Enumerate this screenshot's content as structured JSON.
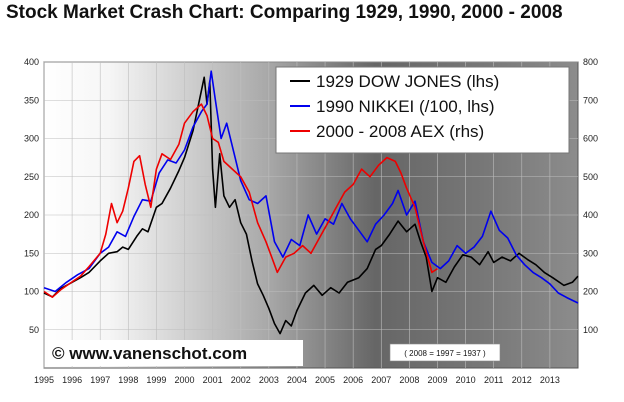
{
  "title": "Stock Market Crash Chart: Comparing 1929, 1990, 2000 - 2008",
  "watermark": "© www.vanenschot.com",
  "note": "( 2008 = 1997 = 1937 )",
  "chart_data": {
    "type": "line",
    "title": "Stock Market Crash Chart: Comparing 1929, 1990, 2000 - 2008",
    "x_ticks": [
      1995,
      1996,
      1997,
      1998,
      1999,
      2000,
      2001,
      2002,
      2003,
      2004,
      2005,
      2006,
      2007,
      2008,
      2009,
      2010,
      2011,
      2012,
      2013
    ],
    "xlim": [
      1995,
      2014
    ],
    "ylim_left": [
      0,
      400
    ],
    "ylim_right": [
      0,
      800
    ],
    "y_ticks_left": [
      50,
      100,
      150,
      200,
      250,
      300,
      350,
      400
    ],
    "y_ticks_right": [
      100,
      200,
      300,
      400,
      500,
      600,
      700,
      800
    ],
    "grid": true,
    "legend_position": "top-right",
    "series": [
      {
        "name": "1929 DOW JONES (lhs)",
        "color": "#000000",
        "axis": "left",
        "points": [
          [
            1995.0,
            98
          ],
          [
            1995.3,
            93
          ],
          [
            1995.6,
            104
          ],
          [
            1996.0,
            112
          ],
          [
            1996.3,
            118
          ],
          [
            1996.6,
            125
          ],
          [
            1997.0,
            140
          ],
          [
            1997.3,
            150
          ],
          [
            1997.6,
            152
          ],
          [
            1997.8,
            158
          ],
          [
            1998.0,
            155
          ],
          [
            1998.3,
            172
          ],
          [
            1998.5,
            182
          ],
          [
            1998.7,
            178
          ],
          [
            1999.0,
            210
          ],
          [
            1999.2,
            215
          ],
          [
            1999.5,
            235
          ],
          [
            1999.8,
            258
          ],
          [
            2000.0,
            275
          ],
          [
            2000.3,
            310
          ],
          [
            2000.5,
            345
          ],
          [
            2000.7,
            380
          ],
          [
            2000.8,
            345
          ],
          [
            2000.9,
            375
          ],
          [
            2001.0,
            260
          ],
          [
            2001.1,
            210
          ],
          [
            2001.25,
            280
          ],
          [
            2001.4,
            225
          ],
          [
            2001.6,
            210
          ],
          [
            2001.8,
            220
          ],
          [
            2002.0,
            190
          ],
          [
            2002.2,
            175
          ],
          [
            2002.4,
            140
          ],
          [
            2002.6,
            110
          ],
          [
            2002.8,
            95
          ],
          [
            2003.0,
            78
          ],
          [
            2003.2,
            58
          ],
          [
            2003.4,
            45
          ],
          [
            2003.6,
            62
          ],
          [
            2003.8,
            55
          ],
          [
            2004.0,
            75
          ],
          [
            2004.3,
            98
          ],
          [
            2004.6,
            108
          ],
          [
            2004.9,
            95
          ],
          [
            2005.2,
            105
          ],
          [
            2005.5,
            98
          ],
          [
            2005.8,
            112
          ],
          [
            2006.2,
            118
          ],
          [
            2006.5,
            130
          ],
          [
            2006.8,
            155
          ],
          [
            2007.0,
            160
          ],
          [
            2007.3,
            175
          ],
          [
            2007.6,
            192
          ],
          [
            2007.9,
            178
          ],
          [
            2008.2,
            188
          ],
          [
            2008.4,
            165
          ],
          [
            2008.6,
            145
          ],
          [
            2008.8,
            100
          ],
          [
            2009.0,
            118
          ],
          [
            2009.3,
            112
          ],
          [
            2009.6,
            132
          ],
          [
            2009.9,
            148
          ],
          [
            2010.2,
            145
          ],
          [
            2010.5,
            135
          ],
          [
            2010.8,
            152
          ],
          [
            2011.0,
            138
          ],
          [
            2011.3,
            145
          ],
          [
            2011.6,
            140
          ],
          [
            2011.9,
            150
          ],
          [
            2012.2,
            142
          ],
          [
            2012.5,
            135
          ],
          [
            2012.8,
            125
          ],
          [
            2013.1,
            118
          ],
          [
            2013.5,
            108
          ],
          [
            2013.8,
            112
          ],
          [
            2014.0,
            120
          ]
        ]
      },
      {
        "name": "1990 NIKKEI (/100, lhs)",
        "color": "#0000ee",
        "axis": "left",
        "points": [
          [
            1995.0,
            105
          ],
          [
            1995.4,
            100
          ],
          [
            1995.8,
            112
          ],
          [
            1996.2,
            122
          ],
          [
            1996.6,
            130
          ],
          [
            1997.0,
            150
          ],
          [
            1997.3,
            158
          ],
          [
            1997.6,
            178
          ],
          [
            1997.9,
            172
          ],
          [
            1998.2,
            198
          ],
          [
            1998.5,
            220
          ],
          [
            1998.8,
            218
          ],
          [
            1999.1,
            255
          ],
          [
            1999.4,
            272
          ],
          [
            1999.7,
            268
          ],
          [
            2000.0,
            285
          ],
          [
            2000.3,
            315
          ],
          [
            2000.6,
            335
          ],
          [
            2000.8,
            345
          ],
          [
            2000.95,
            388
          ],
          [
            2001.1,
            350
          ],
          [
            2001.3,
            300
          ],
          [
            2001.5,
            320
          ],
          [
            2001.8,
            275
          ],
          [
            2002.0,
            245
          ],
          [
            2002.3,
            220
          ],
          [
            2002.6,
            215
          ],
          [
            2002.9,
            225
          ],
          [
            2003.2,
            165
          ],
          [
            2003.5,
            145
          ],
          [
            2003.8,
            168
          ],
          [
            2004.1,
            160
          ],
          [
            2004.4,
            200
          ],
          [
            2004.7,
            175
          ],
          [
            2005.0,
            195
          ],
          [
            2005.3,
            188
          ],
          [
            2005.6,
            215
          ],
          [
            2005.9,
            195
          ],
          [
            2006.2,
            180
          ],
          [
            2006.5,
            165
          ],
          [
            2006.8,
            188
          ],
          [
            2007.1,
            200
          ],
          [
            2007.4,
            215
          ],
          [
            2007.6,
            232
          ],
          [
            2007.9,
            200
          ],
          [
            2008.2,
            218
          ],
          [
            2008.5,
            165
          ],
          [
            2008.8,
            138
          ],
          [
            2009.1,
            130
          ],
          [
            2009.4,
            140
          ],
          [
            2009.7,
            160
          ],
          [
            2010.0,
            150
          ],
          [
            2010.3,
            158
          ],
          [
            2010.6,
            172
          ],
          [
            2010.9,
            205
          ],
          [
            2011.2,
            180
          ],
          [
            2011.5,
            170
          ],
          [
            2011.8,
            148
          ],
          [
            2012.1,
            135
          ],
          [
            2012.4,
            125
          ],
          [
            2012.7,
            118
          ],
          [
            2013.0,
            110
          ],
          [
            2013.3,
            98
          ],
          [
            2013.6,
            92
          ],
          [
            2014.0,
            85
          ]
        ]
      },
      {
        "name": "2000 - 2008 AEX (rhs)",
        "color": "#ee0000",
        "axis": "right",
        "points": [
          [
            1995.0,
            200
          ],
          [
            1995.3,
            185
          ],
          [
            1995.6,
            205
          ],
          [
            1996.0,
            225
          ],
          [
            1996.3,
            240
          ],
          [
            1996.6,
            265
          ],
          [
            1997.0,
            300
          ],
          [
            1997.2,
            350
          ],
          [
            1997.4,
            430
          ],
          [
            1997.6,
            380
          ],
          [
            1997.8,
            410
          ],
          [
            1998.0,
            470
          ],
          [
            1998.2,
            540
          ],
          [
            1998.4,
            555
          ],
          [
            1998.6,
            480
          ],
          [
            1998.8,
            420
          ],
          [
            1999.0,
            520
          ],
          [
            1999.2,
            560
          ],
          [
            1999.5,
            545
          ],
          [
            1999.8,
            585
          ],
          [
            2000.0,
            640
          ],
          [
            2000.3,
            670
          ],
          [
            2000.6,
            690
          ],
          [
            2000.8,
            660
          ],
          [
            2001.0,
            600
          ],
          [
            2001.2,
            590
          ],
          [
            2001.4,
            540
          ],
          [
            2001.7,
            520
          ],
          [
            2002.0,
            500
          ],
          [
            2002.3,
            460
          ],
          [
            2002.6,
            380
          ],
          [
            2002.9,
            330
          ],
          [
            2003.1,
            290
          ],
          [
            2003.3,
            250
          ],
          [
            2003.6,
            290
          ],
          [
            2003.9,
            300
          ],
          [
            2004.2,
            320
          ],
          [
            2004.5,
            300
          ],
          [
            2004.8,
            340
          ],
          [
            2005.1,
            380
          ],
          [
            2005.4,
            420
          ],
          [
            2005.7,
            460
          ],
          [
            2006.0,
            480
          ],
          [
            2006.3,
            520
          ],
          [
            2006.6,
            500
          ],
          [
            2006.9,
            530
          ],
          [
            2007.2,
            550
          ],
          [
            2007.5,
            540
          ],
          [
            2007.7,
            510
          ],
          [
            2007.9,
            470
          ],
          [
            2008.2,
            420
          ],
          [
            2008.5,
            330
          ],
          [
            2008.8,
            250
          ],
          [
            2009.0,
            260
          ]
        ]
      }
    ]
  }
}
